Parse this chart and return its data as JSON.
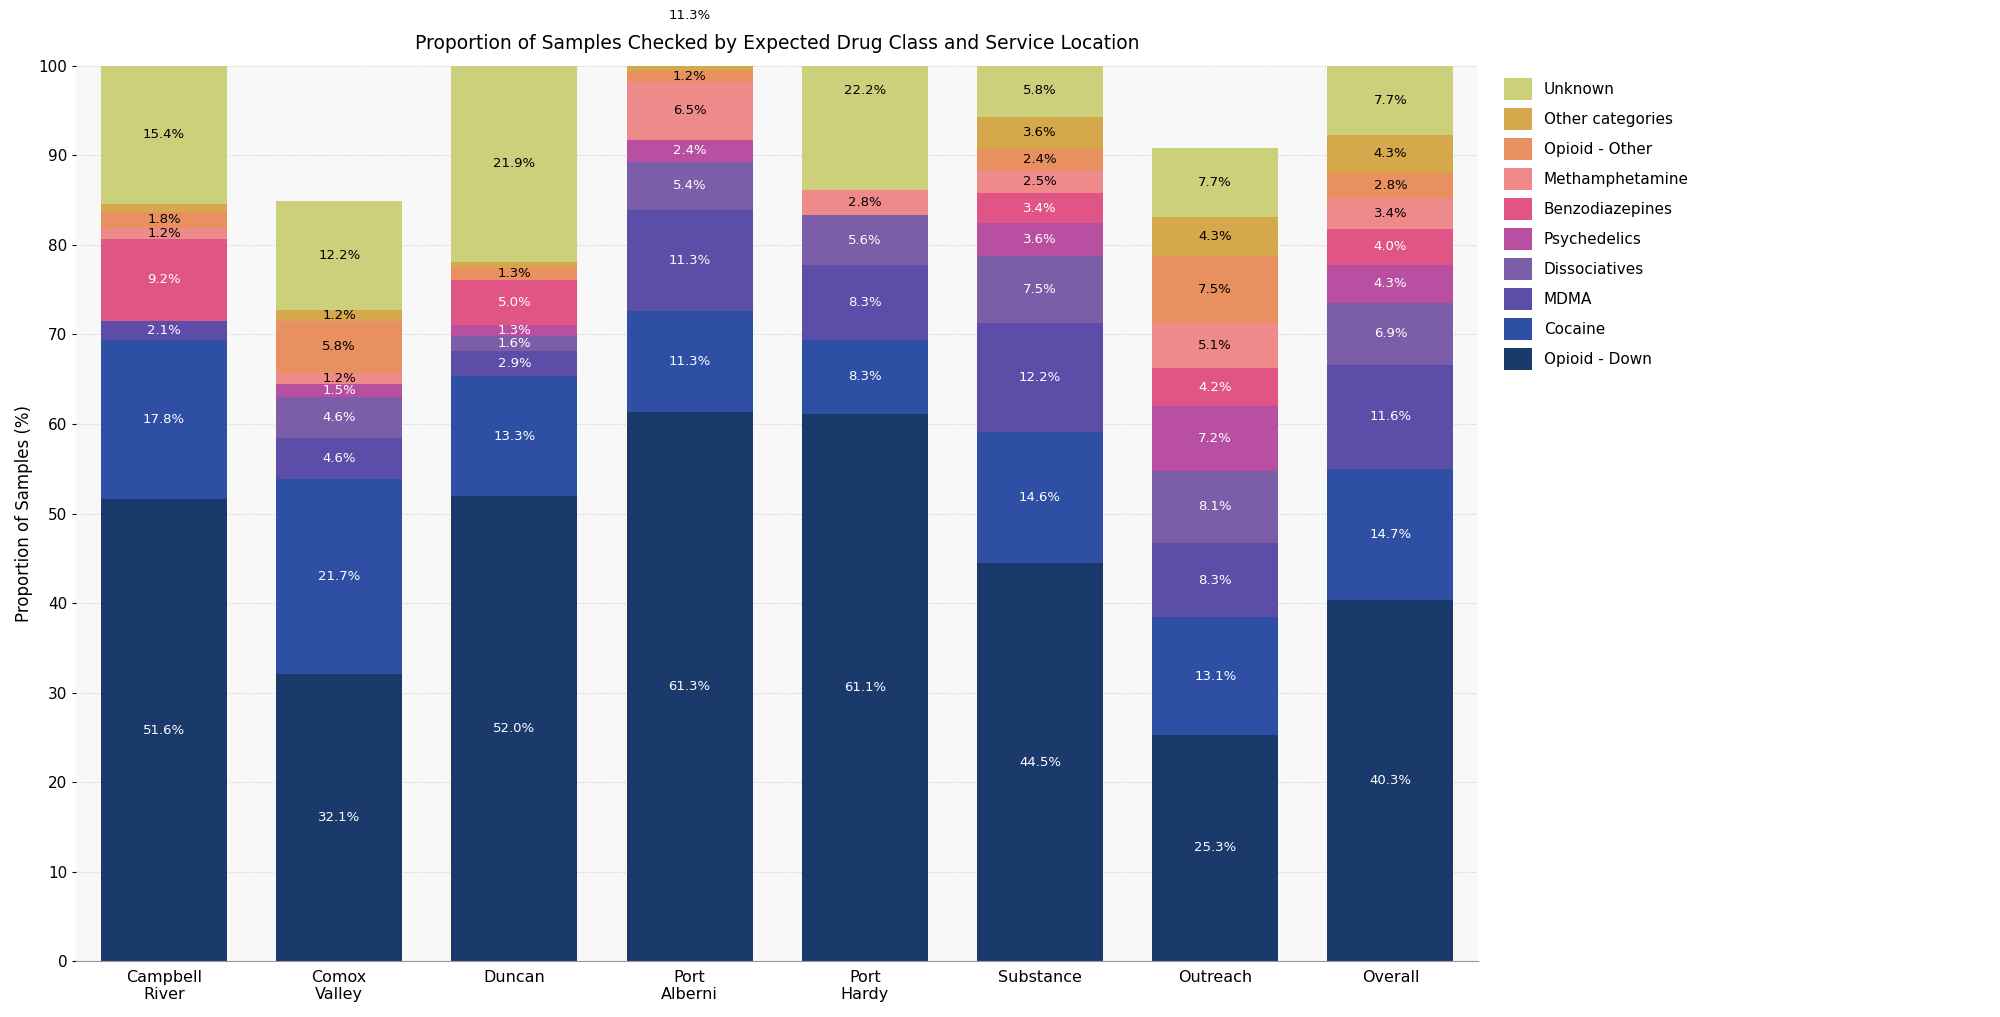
{
  "title": "Proportion of Samples Checked by Expected Drug Class and Service Location",
  "ylabel": "Proportion of Samples (%)",
  "categories": [
    "Campbell\nRiver",
    "Comox\nValley",
    "Duncan",
    "Port\nAlberni",
    "Port\nHardy",
    "Substance",
    "Outreach",
    "Overall"
  ],
  "series": [
    {
      "name": "Opioid - Down",
      "color": "#1a3a6b",
      "values": [
        51.6,
        32.1,
        52.0,
        61.3,
        61.1,
        44.5,
        25.3,
        40.3
      ]
    },
    {
      "name": "Cocaine",
      "color": "#2e4fa3",
      "values": [
        17.8,
        21.7,
        13.3,
        11.3,
        8.3,
        14.6,
        13.1,
        14.7
      ]
    },
    {
      "name": "MDMA",
      "color": "#5b4da8",
      "values": [
        2.1,
        4.6,
        2.9,
        11.3,
        8.3,
        12.2,
        8.3,
        11.6
      ]
    },
    {
      "name": "Dissociatives",
      "color": "#7b5ea7",
      "values": [
        0.0,
        4.6,
        1.6,
        5.4,
        5.6,
        7.5,
        8.1,
        6.9
      ]
    },
    {
      "name": "Psychedelics",
      "color": "#b84fa0",
      "values": [
        0.0,
        1.5,
        1.3,
        2.4,
        0.0,
        3.6,
        7.2,
        4.3
      ]
    },
    {
      "name": "Benzodiazepines",
      "color": "#e05585",
      "values": [
        9.2,
        0.0,
        5.0,
        0.0,
        0.0,
        3.4,
        4.2,
        4.0
      ]
    },
    {
      "name": "Methamphetamine",
      "color": "#ef8a8a",
      "values": [
        1.2,
        1.2,
        0.0,
        6.5,
        2.8,
        2.5,
        5.1,
        3.4
      ]
    },
    {
      "name": "Opioid - Other",
      "color": "#e89060",
      "values": [
        1.8,
        5.8,
        1.3,
        1.2,
        0.0,
        2.4,
        7.5,
        2.8
      ]
    },
    {
      "name": "Other categories",
      "color": "#d4a84b",
      "values": [
        0.9,
        1.2,
        0.7,
        0.6,
        0.0,
        3.6,
        4.3,
        4.3
      ]
    },
    {
      "name": "Unknown",
      "color": "#cdd07a",
      "values": [
        15.4,
        12.2,
        21.9,
        11.3,
        22.2,
        5.8,
        7.7,
        7.7
      ]
    }
  ],
  "show_labels": {
    "Opioid - Down": {
      "color": "white",
      "min_pct": 1.0
    },
    "Cocaine": {
      "color": "white",
      "min_pct": 1.0
    },
    "MDMA": {
      "color": "white",
      "min_pct": 1.0
    },
    "Dissociatives": {
      "color": "white",
      "min_pct": 1.0
    },
    "Psychedelics": {
      "color": "white",
      "min_pct": 1.0
    },
    "Benzodiazepines": {
      "color": "white",
      "min_pct": 1.0
    },
    "Methamphetamine": {
      "color": "black",
      "min_pct": 1.0
    },
    "Opioid - Other": {
      "color": "black",
      "min_pct": 1.0
    },
    "Other categories": {
      "color": "black",
      "min_pct": 1.0
    },
    "Unknown": {
      "color": "black",
      "min_pct": 1.0
    }
  },
  "background_color": "#ffffff",
  "plot_bg_color": "#f8f8f8",
  "ylim": [
    0,
    100
  ],
  "figsize": [
    20.0,
    10.17
  ],
  "dpi": 100,
  "bar_width": 0.72
}
